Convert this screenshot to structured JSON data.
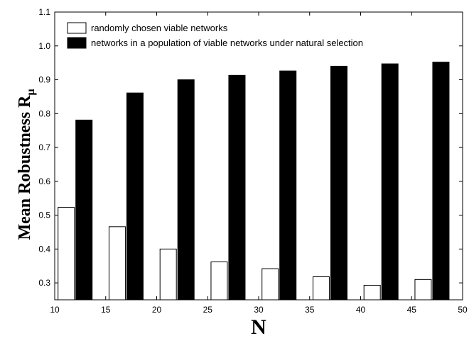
{
  "chart_data": {
    "type": "bar",
    "xlabel": "N",
    "ylabel": "Mean Robustness R",
    "ylabel_subscript": "μ",
    "xlim": [
      10,
      50
    ],
    "ylim": [
      0.25,
      1.1
    ],
    "xticks": [
      10,
      15,
      20,
      25,
      30,
      35,
      40,
      45,
      50
    ],
    "yticks": [
      0.3,
      0.4,
      0.5,
      0.6,
      0.7,
      0.8,
      0.9,
      1.0,
      1.1
    ],
    "ytick_labels": [
      "0.3",
      "0.4",
      "0.5",
      "0.6",
      "0.7",
      "0.8",
      "0.9",
      "1.0",
      "1.1"
    ],
    "grid": false,
    "legend_position": "top-left",
    "x": [
      12,
      17,
      22,
      27,
      32,
      37,
      42,
      47
    ],
    "series": [
      {
        "name": "randomly chosen viable networks",
        "color": "#ffffff",
        "values": [
          0.523,
          0.466,
          0.4,
          0.362,
          0.342,
          0.318,
          0.293,
          0.31
        ]
      },
      {
        "name": "networks in a population of viable networks under natural selection",
        "color": "#000000",
        "values": [
          0.781,
          0.861,
          0.9,
          0.913,
          0.926,
          0.94,
          0.947,
          0.952
        ]
      }
    ]
  }
}
